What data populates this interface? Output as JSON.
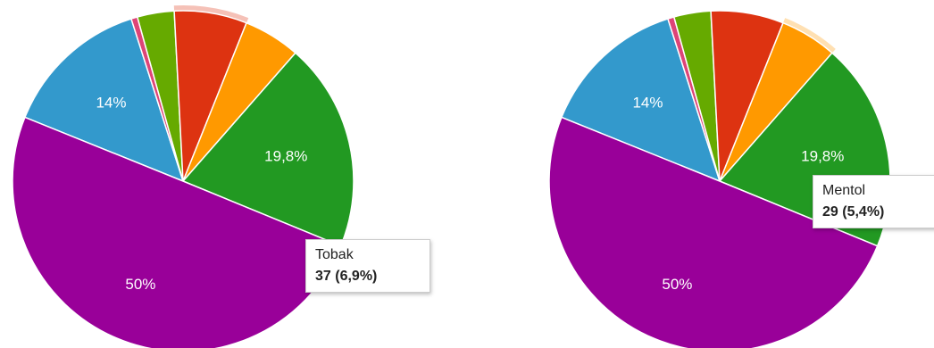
{
  "chart_data": [
    {
      "type": "pie",
      "slices": [
        {
          "value": 14.0,
          "label": "14%",
          "color": "#3399cc"
        },
        {
          "value": 0.6,
          "label": "",
          "color": "#dd4477"
        },
        {
          "value": 3.5,
          "label": "",
          "color": "#66aa00"
        },
        {
          "value": 6.9,
          "label": "",
          "color": "#dd3311",
          "name": "Tobak",
          "count": 37
        },
        {
          "value": 5.4,
          "label": "",
          "color": "#ff9900",
          "name": "Mentol",
          "count": 29
        },
        {
          "value": 19.8,
          "label": "19,8%",
          "color": "#229922"
        },
        {
          "value": 50.0,
          "label": "50%",
          "color": "#990099"
        }
      ],
      "highlighted_slice": 3,
      "tooltip": {
        "name": "Tobak",
        "value": "37 (6,9%)"
      }
    },
    {
      "type": "pie",
      "slices": [
        {
          "value": 14.0,
          "label": "14%",
          "color": "#3399cc"
        },
        {
          "value": 0.6,
          "label": "",
          "color": "#dd4477"
        },
        {
          "value": 3.5,
          "label": "",
          "color": "#66aa00"
        },
        {
          "value": 6.9,
          "label": "",
          "color": "#dd3311",
          "name": "Tobak",
          "count": 37
        },
        {
          "value": 5.4,
          "label": "",
          "color": "#ff9900",
          "name": "Mentol",
          "count": 29
        },
        {
          "value": 19.8,
          "label": "19,8%",
          "color": "#229922"
        },
        {
          "value": 50.0,
          "label": "50%",
          "color": "#990099"
        }
      ],
      "highlighted_slice": 4,
      "tooltip": {
        "name": "Mentol",
        "value": "29 (5,4%)"
      }
    }
  ]
}
